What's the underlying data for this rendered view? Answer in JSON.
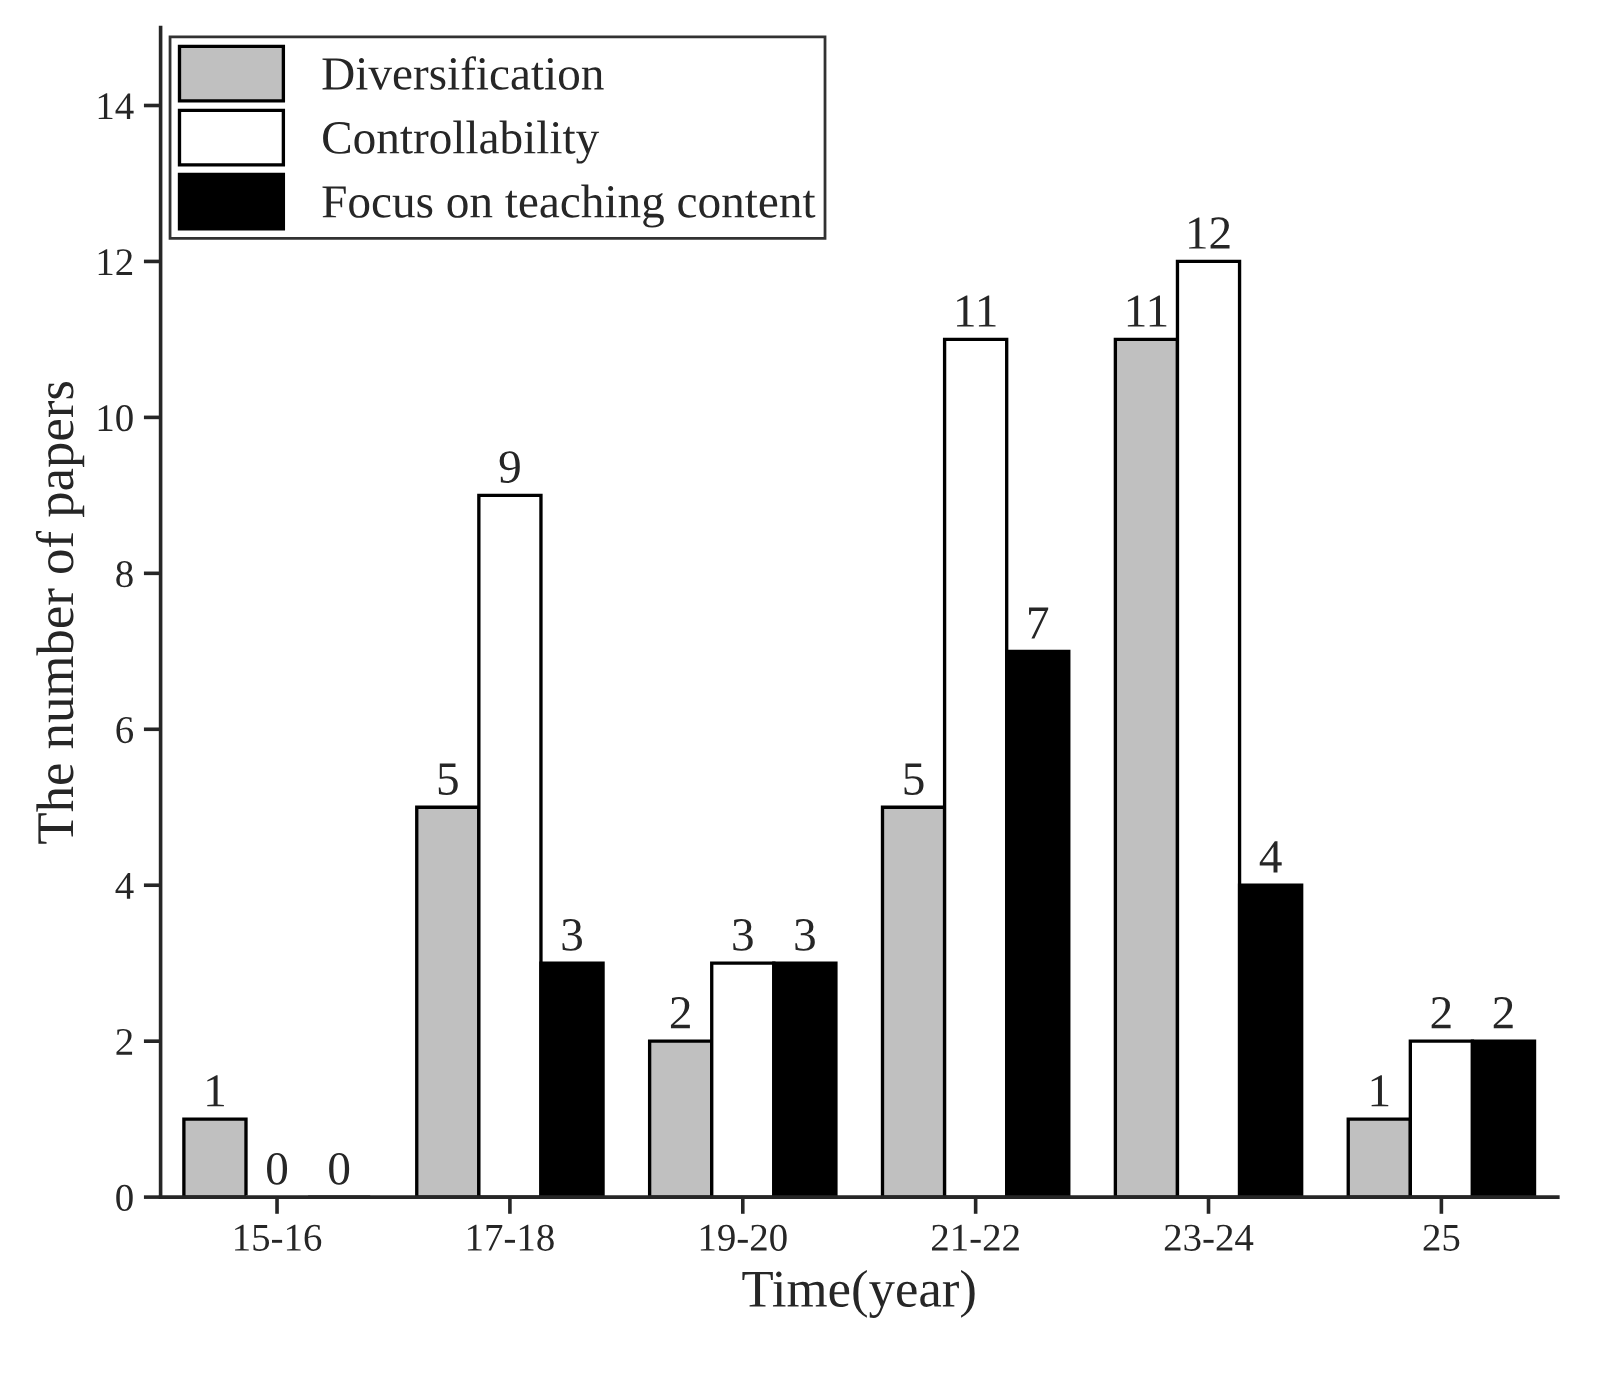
{
  "chart_data": {
    "type": "bar",
    "xlabel": "Time(year)",
    "ylabel": "The number of papers",
    "categories": [
      "15-16",
      "17-18",
      "19-20",
      "21-22",
      "23-24",
      "25"
    ],
    "series": [
      {
        "name": "Diversification",
        "color": "#c0c0c0",
        "values": [
          1,
          5,
          2,
          5,
          11,
          1
        ]
      },
      {
        "name": "Controllability",
        "color": "#ffffff",
        "values": [
          0,
          9,
          3,
          11,
          12,
          2
        ]
      },
      {
        "name": "Focus on teaching content",
        "color": "#000000",
        "values": [
          0,
          3,
          3,
          7,
          4,
          2
        ]
      }
    ],
    "ylim": [
      0,
      15
    ],
    "yticks": [
      0,
      2,
      4,
      6,
      8,
      10,
      12,
      14
    ],
    "data_labels": true,
    "legend": "top left",
    "grid": false
  }
}
